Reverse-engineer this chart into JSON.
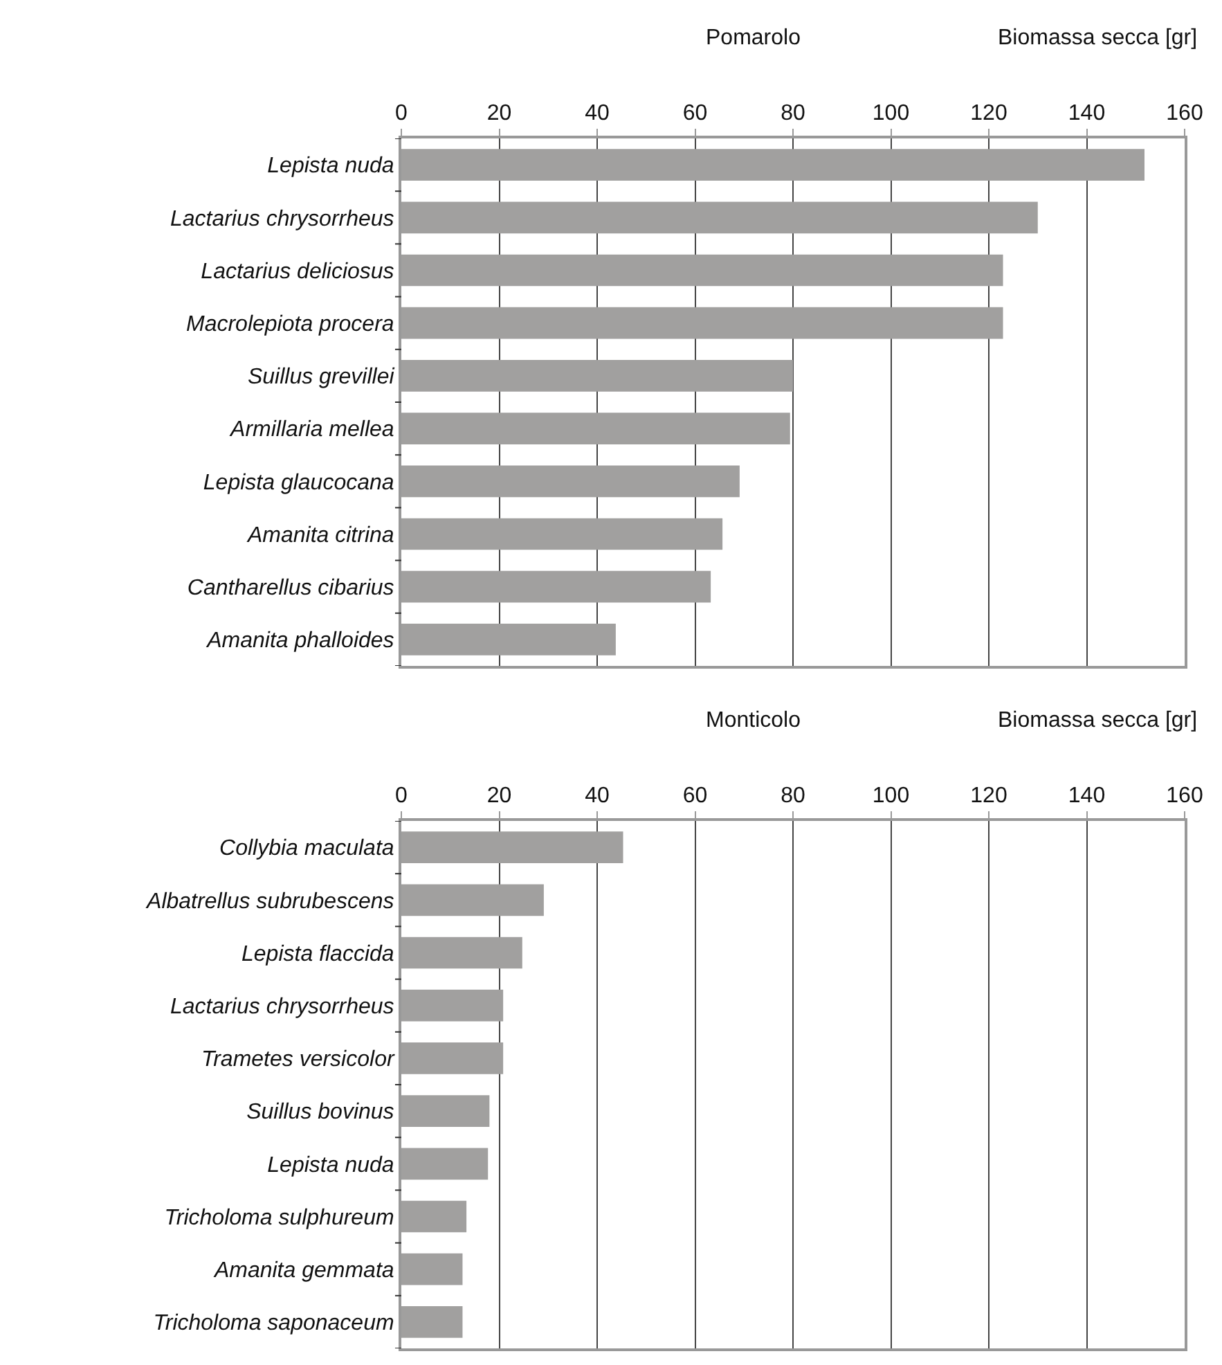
{
  "chart_data": [
    {
      "type": "bar",
      "orientation": "horizontal",
      "title": "Pomarolo",
      "xlabel": "Biomassa secca [gr]",
      "categories": [
        "Lepista nuda",
        "Lactarius chrysorrheus",
        "Lactarius deliciosus",
        "Macrolepiota procera",
        "Suillus grevillei",
        "Armillaria mellea",
        "Lepista glaucocana",
        "Amanita citrina",
        "Cantharellus cibarius",
        "Amanita phalloides"
      ],
      "values": [
        151.8,
        130,
        122.9,
        122.9,
        80,
        79.4,
        69.1,
        65.6,
        63.2,
        43.8
      ],
      "color": "#a1a09f",
      "xlim": [
        0,
        160
      ],
      "xticks": [
        0,
        20,
        40,
        60,
        80,
        100,
        120,
        140,
        160
      ],
      "grid": "x"
    },
    {
      "type": "bar",
      "orientation": "horizontal",
      "title": "Monticolo",
      "xlabel": "Biomassa secca [gr]",
      "categories": [
        "Collybia maculata",
        "Albatrellus subrubescens",
        "Lepista flaccida",
        "Lactarius chrysorrheus",
        "Trametes versicolor",
        "Suillus bovinus",
        "Lepista nuda",
        "Tricholoma sulphureum",
        "Amanita gemmata",
        "Tricholoma saponaceum"
      ],
      "values": [
        45.3,
        29.1,
        24.7,
        20.8,
        20.8,
        18,
        17.7,
        13.3,
        12.5,
        12.5
      ],
      "color": "#a1a09f",
      "xlim": [
        0,
        160
      ],
      "xticks": [
        0,
        20,
        40,
        60,
        80,
        100,
        120,
        140,
        160
      ],
      "grid": "x"
    }
  ]
}
